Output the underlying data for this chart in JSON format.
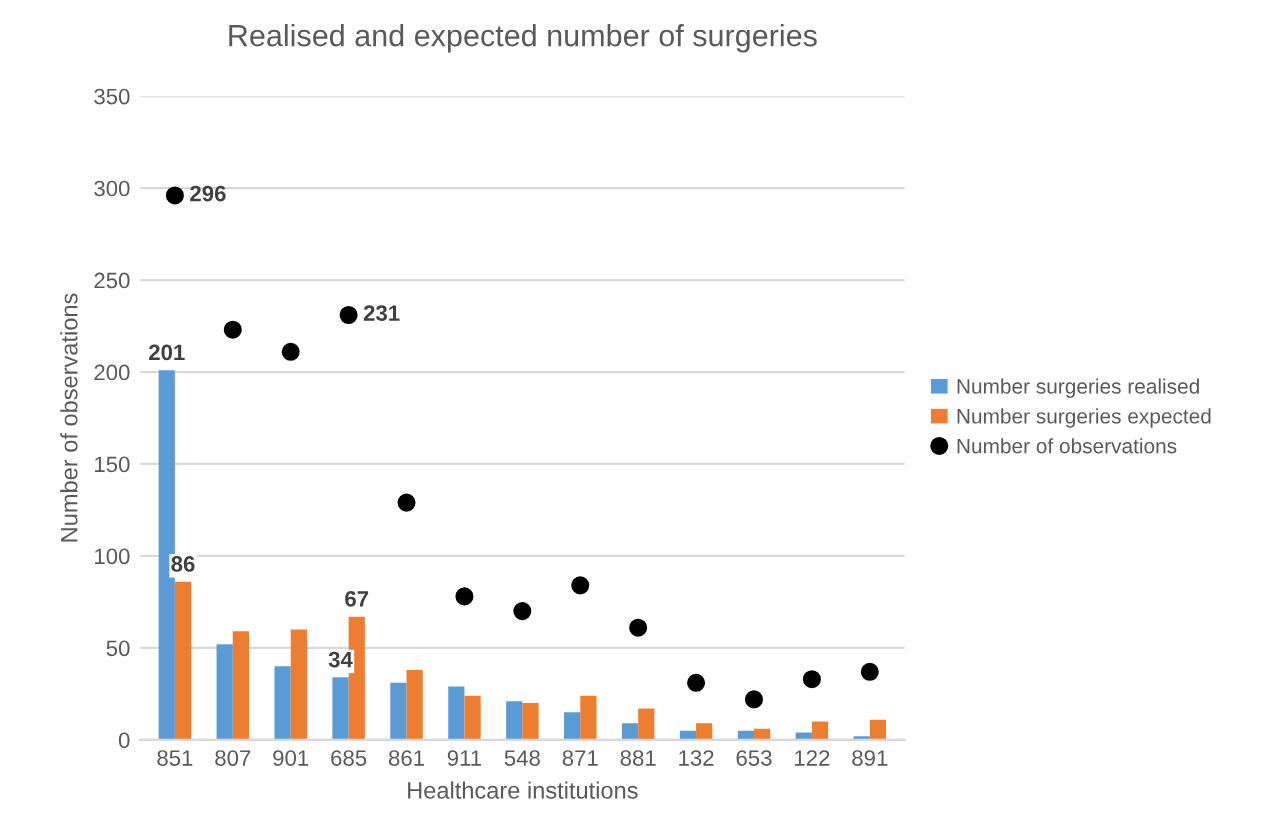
{
  "chart_data": {
    "type": "bar",
    "title": "Realised and expected number of surgeries",
    "xlabel": "Healthcare institutions",
    "ylabel": "Number of observations",
    "categories": [
      "851",
      "807",
      "901",
      "685",
      "861",
      "911",
      "548",
      "871",
      "881",
      "132",
      "653",
      "122",
      "891"
    ],
    "series": [
      {
        "name": "Number surgeries realised",
        "color": "#5b9bd5",
        "values": [
          201,
          52,
          40,
          34,
          31,
          29,
          21,
          15,
          9,
          5,
          5,
          4,
          2
        ],
        "value_labels": [
          "201",
          null,
          null,
          "34",
          null,
          null,
          null,
          null,
          null,
          null,
          null,
          null,
          null
        ]
      },
      {
        "name": "Number surgeries expected",
        "color": "#ed7d31",
        "values": [
          86,
          59,
          60,
          67,
          38,
          24,
          20,
          24,
          17,
          9,
          6,
          10,
          11
        ],
        "value_labels": [
          "86",
          null,
          null,
          "67",
          null,
          null,
          null,
          null,
          null,
          null,
          null,
          null,
          null
        ]
      },
      {
        "name": "Number of observations",
        "type": "scatter",
        "color": "#000000",
        "values": [
          296,
          223,
          211,
          231,
          129,
          78,
          70,
          84,
          61,
          31,
          22,
          33,
          37
        ],
        "value_labels": [
          "296",
          null,
          null,
          "231",
          null,
          null,
          null,
          null,
          null,
          null,
          null,
          null,
          null
        ]
      }
    ],
    "ylim": [
      0,
      350
    ],
    "yticks": [
      0,
      50,
      100,
      150,
      200,
      250,
      300,
      350
    ],
    "grid": "y",
    "legend": "right",
    "marker": "circle"
  }
}
